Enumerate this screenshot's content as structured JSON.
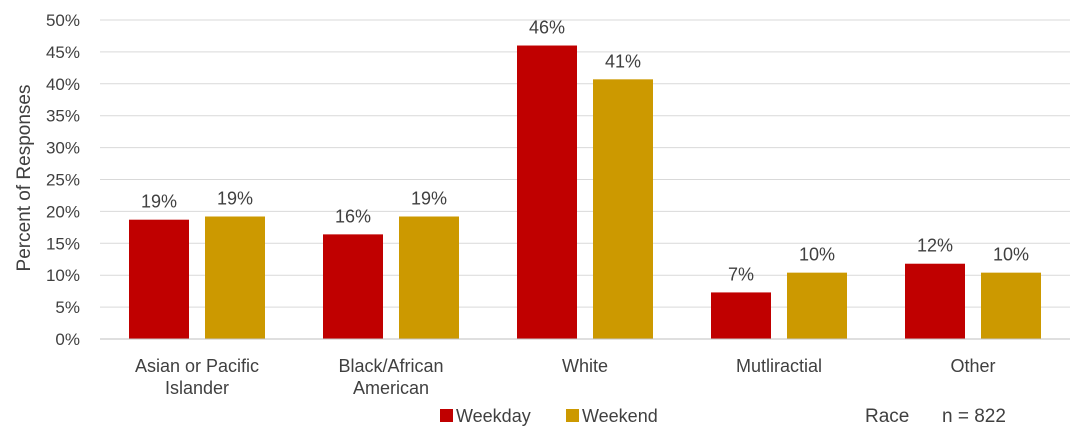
{
  "chart_data": {
    "type": "bar",
    "title": "",
    "xlabel": "Race",
    "ylabel": "Percent of Responses",
    "note": "n = 822",
    "ylim": [
      0,
      50
    ],
    "ytick_step": 5,
    "ytick_labels": [
      "0%",
      "5%",
      "10%",
      "15%",
      "20%",
      "25%",
      "30%",
      "35%",
      "40%",
      "45%",
      "50%"
    ],
    "grid": true,
    "legend_position": "bottom-center",
    "categories": [
      "Asian or Pacific Islander",
      "Black/African American",
      "White",
      "Mutliractial",
      "Other"
    ],
    "series": [
      {
        "name": "Weekday",
        "color": "#c00000",
        "values": [
          18.7,
          16.4,
          46.0,
          7.3,
          11.8
        ],
        "labels": [
          "19%",
          "16%",
          "46%",
          "7%",
          "12%"
        ]
      },
      {
        "name": "Weekend",
        "color": "#cc9900",
        "values": [
          19.2,
          19.2,
          40.7,
          10.4,
          10.4
        ],
        "labels": [
          "19%",
          "19%",
          "41%",
          "10%",
          "10%"
        ]
      }
    ]
  }
}
